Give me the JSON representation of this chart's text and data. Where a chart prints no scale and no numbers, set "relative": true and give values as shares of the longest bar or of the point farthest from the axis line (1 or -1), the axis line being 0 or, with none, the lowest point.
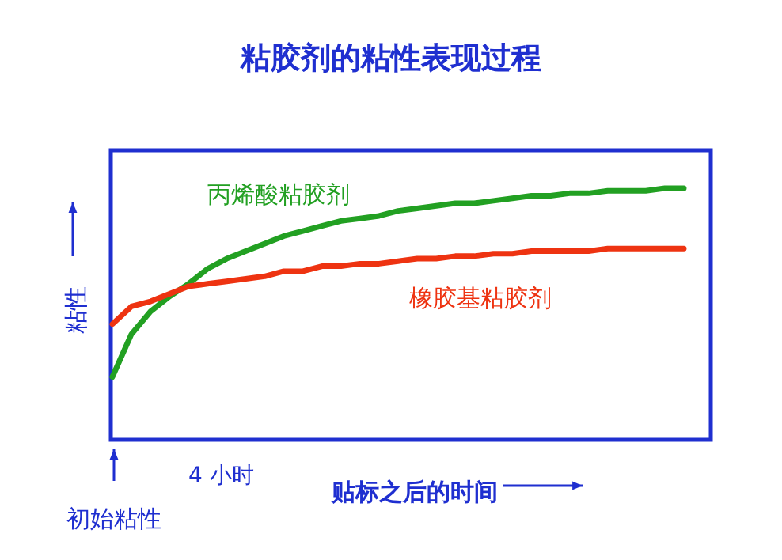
{
  "chart_data": {
    "type": "line",
    "relative": true,
    "title": "粘胶剂的粘性表现过程",
    "ylabel": "粘性",
    "xlabel": "贴标之后的时间",
    "annotations": [
      "初始粘性",
      "4 小时"
    ],
    "legend": false,
    "categories": [
      null,
      null,
      null,
      null,
      null,
      null,
      null,
      null,
      null,
      null,
      null,
      null,
      null,
      null,
      null,
      null,
      null,
      null,
      null,
      null,
      null,
      null,
      null,
      null,
      null,
      null,
      null,
      null,
      null,
      null,
      null
    ],
    "series": [
      {
        "name": "丙烯酸粘胶剂",
        "color": "#22a022",
        "values": [
          0.25,
          0.42,
          0.51,
          0.57,
          0.62,
          0.68,
          0.72,
          0.75,
          0.78,
          0.81,
          0.83,
          0.85,
          0.87,
          0.88,
          0.89,
          0.91,
          0.92,
          0.93,
          0.94,
          0.94,
          0.95,
          0.96,
          0.97,
          0.97,
          0.98,
          0.98,
          0.99,
          0.99,
          0.99,
          1.0,
          1.0
        ]
      },
      {
        "name": "橡胶基粘胶剂",
        "color": "#ee3311",
        "values": [
          0.46,
          0.53,
          0.55,
          0.58,
          0.61,
          0.62,
          0.63,
          0.64,
          0.65,
          0.67,
          0.67,
          0.69,
          0.69,
          0.7,
          0.7,
          0.71,
          0.72,
          0.72,
          0.73,
          0.73,
          0.74,
          0.74,
          0.75,
          0.75,
          0.75,
          0.75,
          0.76,
          0.76,
          0.76,
          0.76,
          0.76
        ]
      }
    ]
  }
}
